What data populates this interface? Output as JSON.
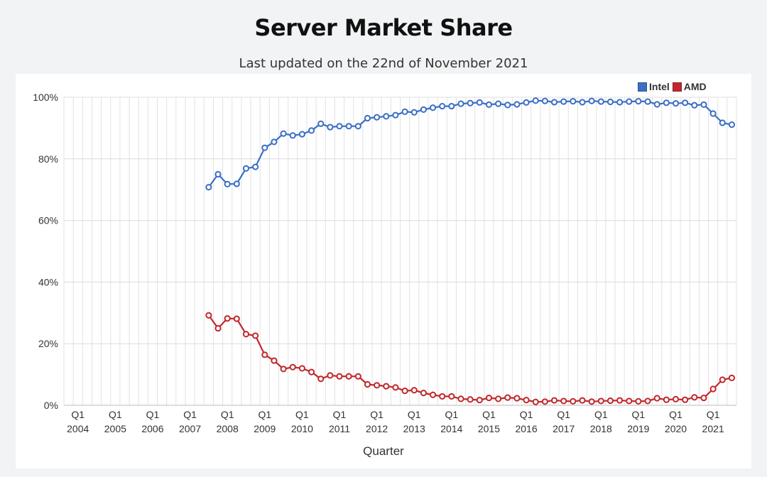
{
  "page": {
    "title": "Server Market Share",
    "subtitle": "Last updated on the 22nd of November 2021"
  },
  "chart_data": {
    "type": "line",
    "title": "Server Market Share",
    "subtitle": "Last updated on the 22nd of November 2021",
    "xlabel": "Quarter",
    "ylabel": "",
    "ylim": [
      0,
      100
    ],
    "y_ticks": [
      "0%",
      "20%",
      "40%",
      "60%",
      "80%",
      "100%"
    ],
    "x_tick_labels": [
      {
        "q": "Q1",
        "year": "2004"
      },
      {
        "q": "Q1",
        "year": "2005"
      },
      {
        "q": "Q1",
        "year": "2006"
      },
      {
        "q": "Q1",
        "year": "2007"
      },
      {
        "q": "Q1",
        "year": "2008"
      },
      {
        "q": "Q1",
        "year": "2009"
      },
      {
        "q": "Q1",
        "year": "2010"
      },
      {
        "q": "Q1",
        "year": "2011"
      },
      {
        "q": "Q1",
        "year": "2012"
      },
      {
        "q": "Q1",
        "year": "2013"
      },
      {
        "q": "Q1",
        "year": "2014"
      },
      {
        "q": "Q1",
        "year": "2015"
      },
      {
        "q": "Q1",
        "year": "2016"
      },
      {
        "q": "Q1",
        "year": "2017"
      },
      {
        "q": "Q1",
        "year": "2018"
      },
      {
        "q": "Q1",
        "year": "2019"
      },
      {
        "q": "Q1",
        "year": "2020"
      },
      {
        "q": "Q1",
        "year": "2021"
      }
    ],
    "quarters_start": "2003 Q4",
    "quarter_count": 72,
    "first_data_index": 15,
    "legend": [
      {
        "name": "Intel",
        "color": "#3b6fc4"
      },
      {
        "name": "AMD",
        "color": "#c0282d"
      }
    ],
    "series": [
      {
        "name": "Intel",
        "color": "#3b6fc4",
        "values": [
          70.8,
          75.0,
          71.8,
          71.9,
          76.9,
          77.4,
          83.6,
          85.5,
          88.2,
          87.6,
          88.0,
          89.2,
          91.4,
          90.3,
          90.6,
          90.6,
          90.6,
          93.2,
          93.5,
          93.8,
          94.2,
          95.3,
          95.1,
          96.0,
          96.6,
          97.1,
          97.1,
          97.9,
          98.1,
          98.3,
          97.6,
          97.9,
          97.5,
          97.7,
          98.3,
          98.9,
          98.8,
          98.4,
          98.6,
          98.7,
          98.4,
          98.8,
          98.6,
          98.5,
          98.4,
          98.6,
          98.7,
          98.6,
          97.7,
          98.2,
          98.0,
          98.2,
          97.4,
          97.6,
          94.7,
          91.7,
          91.1
        ],
        "points_labelled": false
      },
      {
        "name": "AMD",
        "color": "#c0282d",
        "values": [
          29.2,
          25.0,
          28.2,
          28.1,
          23.1,
          22.6,
          16.4,
          14.5,
          11.8,
          12.4,
          12.0,
          10.8,
          8.6,
          9.7,
          9.4,
          9.4,
          9.4,
          6.8,
          6.5,
          6.2,
          5.8,
          4.7,
          4.9,
          4.0,
          3.4,
          2.9,
          2.9,
          2.1,
          1.9,
          1.7,
          2.4,
          2.1,
          2.5,
          2.3,
          1.7,
          1.1,
          1.2,
          1.6,
          1.4,
          1.3,
          1.6,
          1.2,
          1.4,
          1.5,
          1.6,
          1.4,
          1.3,
          1.4,
          2.3,
          1.8,
          2.0,
          1.8,
          2.6,
          2.4,
          5.3,
          8.3,
          8.9
        ],
        "points_labelled": false
      }
    ]
  }
}
